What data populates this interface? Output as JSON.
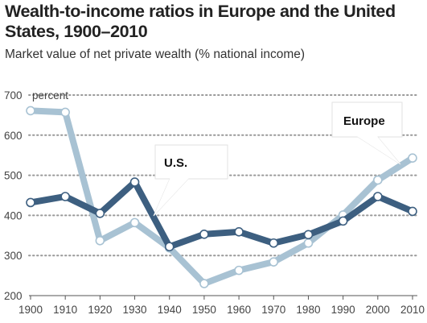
{
  "chart_data": {
    "type": "line",
    "title": "Wealth-to-income ratios in Europe and the United States, 1900–2010",
    "subtitle": "Market value of net private wealth (% national income)",
    "ylabel_unit": "percent",
    "x": [
      1900,
      1910,
      1920,
      1930,
      1940,
      1950,
      1960,
      1970,
      1980,
      1990,
      2000,
      2010
    ],
    "ylim": [
      200,
      700
    ],
    "yticks": [
      200,
      300,
      400,
      500,
      600,
      700
    ],
    "grid": "horizontal dotted",
    "series": [
      {
        "name": "U.S.",
        "color": "#3d5f80",
        "values": [
          432,
          447,
          405,
          483,
          322,
          353,
          359,
          331,
          352,
          386,
          447,
          410
        ]
      },
      {
        "name": "Europe",
        "color": "#a8c2d3",
        "values": [
          661,
          657,
          337,
          382,
          319,
          230,
          263,
          284,
          331,
          401,
          488,
          543
        ]
      }
    ]
  }
}
